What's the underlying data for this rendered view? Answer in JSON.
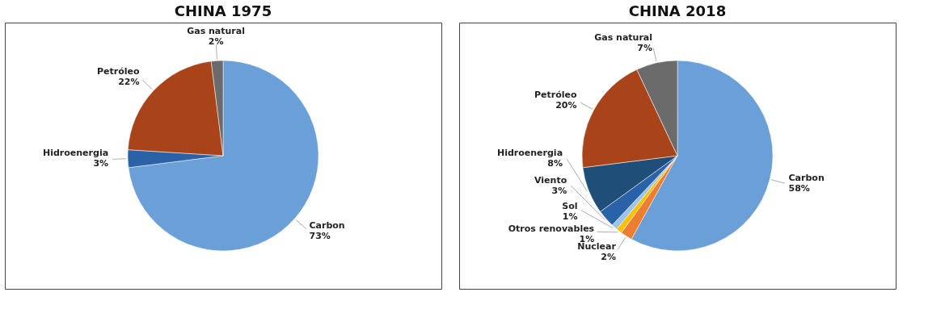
{
  "chart_data": [
    {
      "type": "pie",
      "title": "CHINA 1975",
      "categories": [
        "Carbon",
        "Hidroenergia",
        "Petróleo",
        "Gas natural"
      ],
      "values": [
        73,
        3,
        22,
        2
      ],
      "colors": [
        "#6a9fd8",
        "#2a62a8",
        "#a9441a",
        "#6b6b6b"
      ],
      "value_labels": [
        "73%",
        "3%",
        "22%",
        "2%"
      ],
      "legend": false
    },
    {
      "type": "pie",
      "title": "CHINA 2018",
      "categories": [
        "Carbon",
        "Nuclear",
        "Otros renovables",
        "Sol",
        "Viento",
        "Hidroenergia",
        "Petróleo",
        "Gas natural"
      ],
      "values": [
        58,
        2,
        1,
        1,
        3,
        8,
        20,
        7
      ],
      "colors": [
        "#6a9fd8",
        "#ed7d31",
        "#ffc000",
        "#9dc3e6",
        "#2a62a8",
        "#1f4e79",
        "#a9441a",
        "#6b6b6b"
      ],
      "value_labels": [
        "58%",
        "2%",
        "1%",
        "1%",
        "3%",
        "8%",
        "20%",
        "7%"
      ],
      "legend": false
    }
  ]
}
